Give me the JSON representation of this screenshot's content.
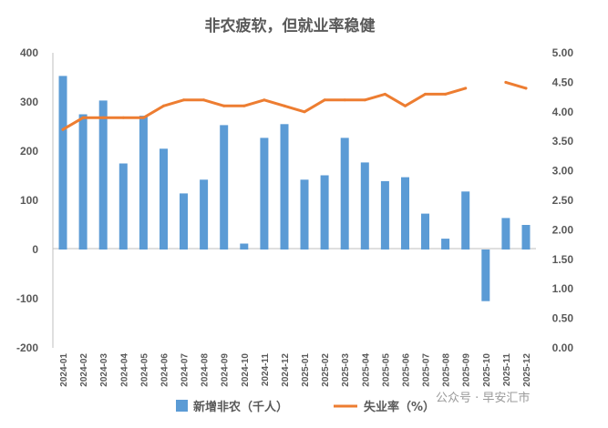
{
  "chart_data": {
    "type": "bar",
    "title": "非农疲软，但就业率稳健",
    "categories": [
      "2024-01",
      "2024-02",
      "2024-03",
      "2024-04",
      "2024-05",
      "2024-06",
      "2024-07",
      "2024-08",
      "2024-09",
      "2024-10",
      "2024-11",
      "2024-12",
      "2025-01",
      "2025-02",
      "2025-03",
      "2025-04",
      "2025-05",
      "2025-06",
      "2025-07",
      "2025-08",
      "2025-09",
      "2025-10",
      "2025-11",
      "2025-12"
    ],
    "series": [
      {
        "name": "新增非农（千人）",
        "type": "bar",
        "axis": "left",
        "color": "#5b9bd5",
        "values": [
          353,
          275,
          303,
          175,
          272,
          205,
          114,
          142,
          253,
          12,
          227,
          255,
          142,
          151,
          227,
          177,
          139,
          147,
          73,
          22,
          118,
          -105,
          64,
          50
        ]
      },
      {
        "name": "失业率（%）",
        "type": "line",
        "axis": "right",
        "color": "#ed7d31",
        "values": [
          3.7,
          3.9,
          3.9,
          3.9,
          3.9,
          4.1,
          4.2,
          4.2,
          4.1,
          4.1,
          4.2,
          4.1,
          4.0,
          4.2,
          4.2,
          4.2,
          4.3,
          4.1,
          4.3,
          4.3,
          4.4,
          null,
          4.5,
          4.4
        ]
      }
    ],
    "ylim_left": [
      -200,
      400
    ],
    "yticks_left": [
      "400",
      "300",
      "200",
      "100",
      "0",
      "-100",
      "-200"
    ],
    "ylim_right": [
      0,
      5
    ],
    "yticks_right": [
      "5.00",
      "4.50",
      "4.00",
      "3.50",
      "3.00",
      "2.50",
      "2.00",
      "1.50",
      "1.00",
      "0.50",
      "0.00"
    ],
    "grid": false,
    "legend_position": "bottom"
  },
  "watermark": "公众号 · 早安汇市"
}
